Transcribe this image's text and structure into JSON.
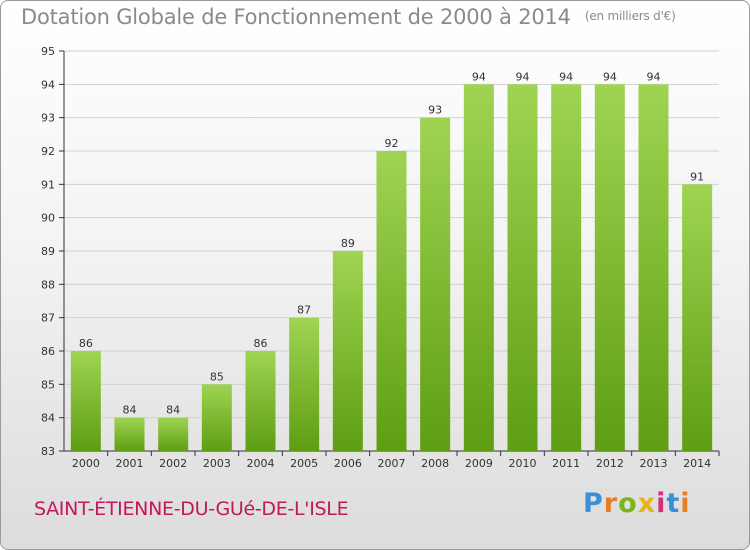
{
  "title": {
    "main": "Dotation Globale de Fonctionnement de 2000 à 2014",
    "unit": "(en milliers d'€)"
  },
  "place_name": "SAINT-ÉTIENNE-DU-GUé-DE-L'ISLE",
  "brand": {
    "name": "Proxiti",
    "letter_colors": [
      "#3a8fd6",
      "#e67e22",
      "#7ab51d",
      "#e7b416",
      "#d62f7e",
      "#3a8fd6",
      "#e67e22"
    ]
  },
  "colors": {
    "bar_light": "#9fd452",
    "bar_dark": "#5e9e12",
    "grid": "#d0d0d0",
    "axis": "#333333"
  },
  "chart_data": {
    "type": "bar",
    "title": "Dotation Globale de Fonctionnement de 2000 à 2014",
    "subtitle": "(en milliers d'€)",
    "xlabel": "",
    "ylabel": "",
    "categories": [
      "2000",
      "2001",
      "2002",
      "2003",
      "2004",
      "2005",
      "2006",
      "2007",
      "2008",
      "2009",
      "2010",
      "2011",
      "2012",
      "2013",
      "2014"
    ],
    "values": [
      86,
      84,
      84,
      85,
      86,
      87,
      89,
      92,
      93,
      94,
      94,
      94,
      94,
      94,
      91
    ],
    "ylim": [
      83,
      95
    ],
    "yticks": [
      83,
      84,
      85,
      86,
      87,
      88,
      89,
      90,
      91,
      92,
      93,
      94,
      95
    ],
    "grid": true,
    "data_labels": true
  }
}
